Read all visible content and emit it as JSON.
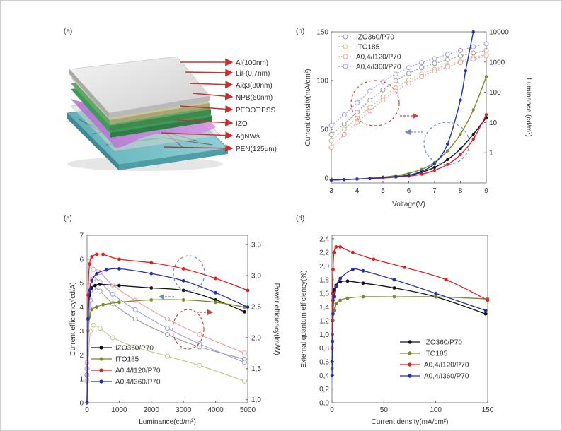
{
  "panels": {
    "a": "(a)",
    "b": "(b)",
    "c": "(c)",
    "d": "(d)"
  },
  "device_layers": [
    "Al(100nm)",
    "LiF(0,7nm)",
    "Alq3(80nm)",
    "NPB(60nm)",
    "PEDOT:PSS",
    "IZO",
    "AgNWs",
    "PEN(125μm)"
  ],
  "colors": {
    "izo": "#111111",
    "ito": "#7b8a22",
    "a120": "#e02020",
    "a360": "#2233aa",
    "izo_light": "#9a9a9a",
    "ito_light": "#c2c48a",
    "a120_light": "#f09a9a",
    "a360_light": "#9a9ee8",
    "annot_red": "#d04040",
    "annot_blue": "#6a90c8"
  },
  "chart_data": [
    {
      "panel": "b",
      "type": "line",
      "xlabel": "Voltage(V)",
      "ylabel": "Current density(mA/cm²)",
      "y2label": "Luminance (cd/m²)",
      "xlim": [
        3,
        9
      ],
      "ylim": [
        -5,
        150
      ],
      "y2lim": [
        0.1,
        10000
      ],
      "y2scale": "log",
      "xticks": [
        "3",
        "4",
        "5",
        "6",
        "7",
        "8",
        "9"
      ],
      "yticks": [
        "0",
        "50",
        "100",
        "150"
      ],
      "y2ticks": [
        "1",
        "10",
        "100",
        "1000",
        "10000"
      ],
      "legend": [
        "IZO360/P70",
        "ITO185",
        "A0,4/I120/P70",
        "A0,4/I360/P70"
      ],
      "current_series": [
        {
          "name": "IZO360/P70",
          "x": [
            3,
            3.5,
            4,
            4.5,
            5,
            5.5,
            6,
            6.5,
            7,
            7.5,
            8,
            8.5,
            9
          ],
          "y": [
            -2,
            -1.5,
            -1,
            -0.5,
            0.5,
            1.5,
            3,
            6,
            11,
            19,
            30,
            45,
            62
          ]
        },
        {
          "name": "ITO185",
          "x": [
            3,
            3.5,
            4,
            4.5,
            5,
            5.5,
            6,
            6.5,
            7,
            7.5,
            8,
            8.5,
            9
          ],
          "y": [
            -2,
            -1.5,
            -1,
            0,
            1,
            2.5,
            5,
            9,
            16,
            28,
            45,
            70,
            104
          ]
        },
        {
          "name": "A0,4/I120/P70",
          "x": [
            3,
            3.5,
            4,
            4.5,
            5,
            5.5,
            6,
            6.5,
            7,
            7.5,
            8,
            8.5,
            9
          ],
          "y": [
            -2,
            -1.5,
            -1,
            -0.5,
            0,
            1,
            2,
            4,
            8,
            14,
            24,
            40,
            65
          ]
        },
        {
          "name": "A0,4/I360/P70",
          "x": [
            3,
            3.5,
            4,
            4.5,
            5,
            5.5,
            6,
            6.5,
            7,
            7.5,
            8,
            8.2,
            8.5
          ],
          "y": [
            -2,
            -1.5,
            -1,
            -0.5,
            0.5,
            1.5,
            3,
            7,
            15,
            35,
            80,
            110,
            150
          ]
        }
      ],
      "luminance_series": [
        {
          "name": "IZO360/P70",
          "x": [
            3,
            3.5,
            4,
            4.5,
            5,
            5.5,
            6,
            6.5,
            7,
            7.5,
            8,
            8.5,
            9
          ],
          "y": [
            4,
            9,
            22,
            55,
            120,
            240,
            420,
            650,
            900,
            1200,
            1600,
            2000,
            2400
          ]
        },
        {
          "name": "ITO185",
          "x": [
            3,
            3.5,
            4,
            4.5,
            5,
            5.5,
            6,
            6.5,
            7,
            7.5,
            8,
            8.5,
            9
          ],
          "y": [
            2.5,
            6,
            14,
            32,
            70,
            140,
            250,
            400,
            580,
            800,
            1050,
            1400,
            1800
          ]
        },
        {
          "name": "A0,4/I120/P70",
          "x": [
            3,
            3.5,
            4,
            4.5,
            5,
            5.5,
            6,
            6.5,
            7,
            7.5,
            8,
            8.5,
            9
          ],
          "y": [
            1.5,
            4,
            10,
            24,
            55,
            110,
            200,
            330,
            500,
            700,
            950,
            1250,
            1600
          ]
        },
        {
          "name": "A0,4/I360/P70",
          "x": [
            3,
            3.5,
            4,
            4.5,
            5,
            5.5,
            6,
            6.5,
            7,
            7.5,
            8,
            8.5,
            9
          ],
          "y": [
            8,
            18,
            45,
            110,
            220,
            400,
            650,
            950,
            1300,
            1800,
            2400,
            3200,
            4000
          ]
        }
      ]
    },
    {
      "panel": "c",
      "type": "line",
      "xlabel": "Luminance(cd/m²)",
      "ylabel": "Current efficiency(cd/A)",
      "y2label": "Power efficiency(lm/W)",
      "xlim": [
        0,
        5000
      ],
      "ylim": [
        0,
        7
      ],
      "y2lim": [
        0.95,
        3.65
      ],
      "xticks": [
        "0",
        "1000",
        "2000",
        "3000",
        "4000",
        "5000"
      ],
      "yticks": [
        "0",
        "1",
        "2",
        "3",
        "4",
        "5",
        "6",
        "7"
      ],
      "y2ticks": [
        "1,0",
        "1,5",
        "2,0",
        "2,5",
        "3,0",
        "3,5"
      ],
      "legend": [
        "IZO360/P70",
        "ITO185",
        "A0,4/I120/P70",
        "A0,4/I360/P70"
      ],
      "ce_series": [
        {
          "name": "IZO360/P70",
          "x": [
            0,
            30,
            80,
            150,
            250,
            400,
            1000,
            2000,
            3000,
            4000,
            4900
          ],
          "y": [
            0,
            3.5,
            4.5,
            4.8,
            4.9,
            4.95,
            4.9,
            4.8,
            4.7,
            4.3,
            3.8
          ]
        },
        {
          "name": "ITO185",
          "x": [
            0,
            30,
            80,
            150,
            300,
            500,
            1000,
            2000,
            3000,
            4000,
            4900
          ],
          "y": [
            0,
            3,
            3.6,
            3.9,
            4.0,
            4.1,
            4.2,
            4.3,
            4.3,
            4.2,
            4.0
          ]
        },
        {
          "name": "A0,4/I120/P70",
          "x": [
            0,
            30,
            80,
            150,
            300,
            500,
            1000,
            2000,
            3000,
            4000,
            5000
          ],
          "y": [
            0,
            4.5,
            5.8,
            6.1,
            6.2,
            6.2,
            6.0,
            5.85,
            5.6,
            5.2,
            4.7
          ]
        },
        {
          "name": "A0,4/I360/P70",
          "x": [
            0,
            30,
            80,
            150,
            300,
            600,
            1000,
            2000,
            3000,
            4000,
            5000
          ],
          "y": [
            0,
            3.5,
            4.7,
            5.1,
            5.4,
            5.55,
            5.6,
            5.4,
            5.1,
            4.6,
            4.0
          ]
        }
      ],
      "pe_series": [
        {
          "name": "IZO360/P70",
          "x": [
            0,
            100,
            200,
            400,
            800,
            1500,
            2500,
            3500,
            4900
          ],
          "y": [
            1.4,
            2.6,
            2.8,
            2.75,
            2.55,
            2.3,
            2.05,
            1.85,
            1.65
          ]
        },
        {
          "name": "ITO185",
          "x": [
            0,
            100,
            200,
            400,
            800,
            1500,
            2500,
            3500,
            4900
          ],
          "y": [
            1.3,
            2.1,
            2.2,
            2.15,
            2.0,
            1.85,
            1.7,
            1.55,
            1.3
          ]
        },
        {
          "name": "A0,4/I120/P70",
          "x": [
            0,
            100,
            200,
            400,
            800,
            1500,
            2500,
            3500,
            4900
          ],
          "y": [
            1.6,
            2.9,
            3.1,
            3.05,
            2.85,
            2.6,
            2.3,
            2.05,
            1.75
          ]
        },
        {
          "name": "A0,4/I360/P70",
          "x": [
            0,
            100,
            200,
            400,
            800,
            1500,
            2500,
            3500,
            4900
          ],
          "y": [
            1.5,
            2.75,
            2.95,
            2.9,
            2.7,
            2.45,
            2.15,
            1.9,
            1.6
          ]
        }
      ]
    },
    {
      "panel": "d",
      "type": "line",
      "xlabel": "Current density(mA/cm²)",
      "ylabel": "External quantum efficiency(%)",
      "xlim": [
        0,
        150
      ],
      "ylim": [
        0,
        2.45
      ],
      "xticks": [
        "0",
        "50",
        "100",
        "150"
      ],
      "yticks": [
        "0,0",
        "0,2",
        "0,4",
        "0,6",
        "0,8",
        "1,0",
        "1,2",
        "1,4",
        "1,6",
        "1,8",
        "2,0",
        "2,2",
        "2,4"
      ],
      "legend": [
        "IZO360/P70",
        "ITO185",
        "A0,4/I120/P70",
        "A0,4/I360/P70"
      ],
      "series": [
        {
          "name": "IZO360/P70",
          "x": [
            0.1,
            0.5,
            1,
            2,
            4,
            8,
            15,
            30,
            60,
            100,
            148
          ],
          "y": [
            0.6,
            1.2,
            1.5,
            1.65,
            1.72,
            1.77,
            1.78,
            1.75,
            1.68,
            1.55,
            1.3
          ]
        },
        {
          "name": "ITO185",
          "x": [
            0.1,
            0.5,
            1,
            2,
            4,
            8,
            15,
            30,
            60,
            100,
            150
          ],
          "y": [
            0.5,
            1.0,
            1.2,
            1.35,
            1.45,
            1.5,
            1.53,
            1.55,
            1.55,
            1.55,
            1.52
          ]
        },
        {
          "name": "A0,4/I120/P70",
          "x": [
            0.1,
            0.5,
            1,
            2,
            4,
            8,
            20,
            40,
            70,
            110,
            150
          ],
          "y": [
            0.8,
            1.6,
            1.95,
            2.2,
            2.28,
            2.28,
            2.2,
            2.1,
            1.98,
            1.8,
            1.5
          ]
        },
        {
          "name": "A0,4/I360/P70",
          "x": [
            0.1,
            0.5,
            1,
            2,
            4,
            8,
            20,
            30,
            60,
            100,
            148
          ],
          "y": [
            0.4,
            0.9,
            1.3,
            1.55,
            1.7,
            1.82,
            1.95,
            1.93,
            1.8,
            1.6,
            1.35
          ]
        }
      ]
    }
  ]
}
